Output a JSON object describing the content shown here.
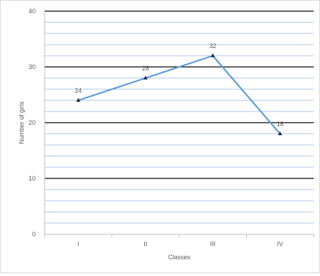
{
  "chart_data": {
    "type": "line",
    "title": "",
    "xlabel": "Classes",
    "ylabel": "Number of girls",
    "categories": [
      "I",
      "II",
      "III",
      "IV"
    ],
    "series": [
      {
        "values": [
          24,
          28,
          32,
          18
        ]
      }
    ],
    "data_labels": [
      "24",
      "28",
      "32",
      "18"
    ],
    "y_ticks": [
      "0",
      "10",
      "20",
      "30",
      "40"
    ],
    "ylim": [
      0,
      40
    ],
    "major_grid_step": 10,
    "minor_grid_step": 2,
    "grid": true,
    "legend": "none",
    "marker": "triangle",
    "colors": {
      "line": "#5b9bd5",
      "marker": "#1f2a44",
      "major_grid": "#000000",
      "minor_grid": "#a9c4e8",
      "axis": "#bfbfbf",
      "text": "#595959"
    }
  }
}
